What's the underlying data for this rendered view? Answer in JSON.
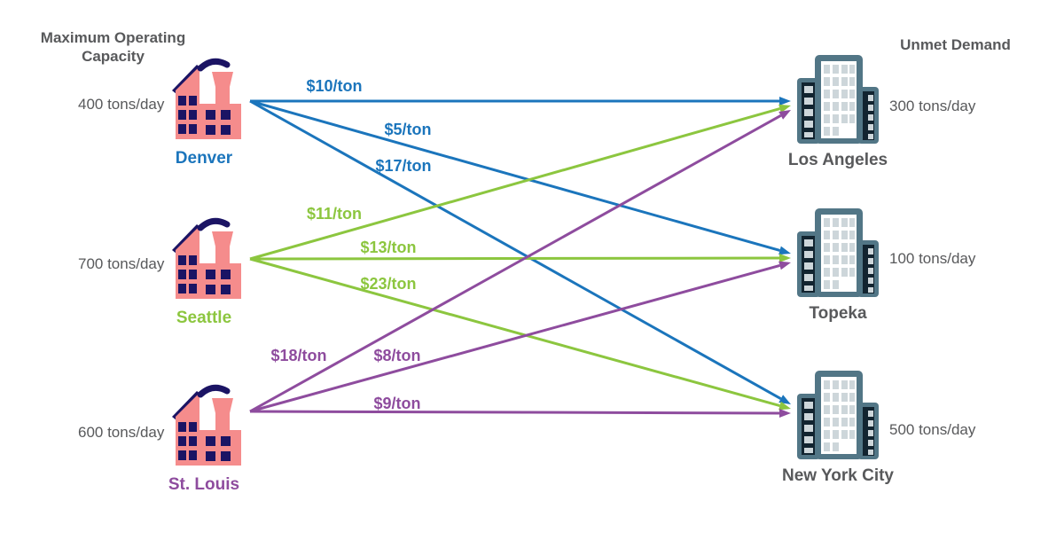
{
  "headers": {
    "left": "Maximum Operating Capacity",
    "right": "Unmet Demand"
  },
  "factories": [
    {
      "id": "denver",
      "name": "Denver",
      "capacity": "400 tons/day"
    },
    {
      "id": "seattle",
      "name": "Seattle",
      "capacity": "700 tons/day"
    },
    {
      "id": "stlouis",
      "name": "St. Louis",
      "capacity": "600 tons/day"
    }
  ],
  "cities": [
    {
      "id": "la",
      "name": "Los Angeles",
      "demand": "300 tons/day"
    },
    {
      "id": "topeka",
      "name": "Topeka",
      "demand": "100 tons/day"
    },
    {
      "id": "nyc",
      "name": "New York City",
      "demand": "500 tons/day"
    }
  ],
  "edges": [
    {
      "from": "denver",
      "to": "la",
      "cost": "$10/ton"
    },
    {
      "from": "denver",
      "to": "topeka",
      "cost": "$5/ton"
    },
    {
      "from": "denver",
      "to": "nyc",
      "cost": "$17/ton"
    },
    {
      "from": "seattle",
      "to": "la",
      "cost": "$11/ton"
    },
    {
      "from": "seattle",
      "to": "topeka",
      "cost": "$13/ton"
    },
    {
      "from": "seattle",
      "to": "nyc",
      "cost": "$23/ton"
    },
    {
      "from": "stlouis",
      "to": "la",
      "cost": "$18/ton"
    },
    {
      "from": "stlouis",
      "to": "topeka",
      "cost": "$8/ton"
    },
    {
      "from": "stlouis",
      "to": "nyc",
      "cost": "$9/ton"
    }
  ],
  "colors": {
    "denver": "#1B75BC",
    "seattle": "#8CC63F",
    "stlouis": "#8E4C9E",
    "text_gray": "#58595B",
    "factory_body": "#F58C8C",
    "factory_navy": "#1B1464",
    "city_frame": "#527686",
    "city_dark": "#122430",
    "city_window": "#CDD6DA"
  },
  "icons": {
    "factory": "factory-icon",
    "city": "city-building-icon"
  }
}
